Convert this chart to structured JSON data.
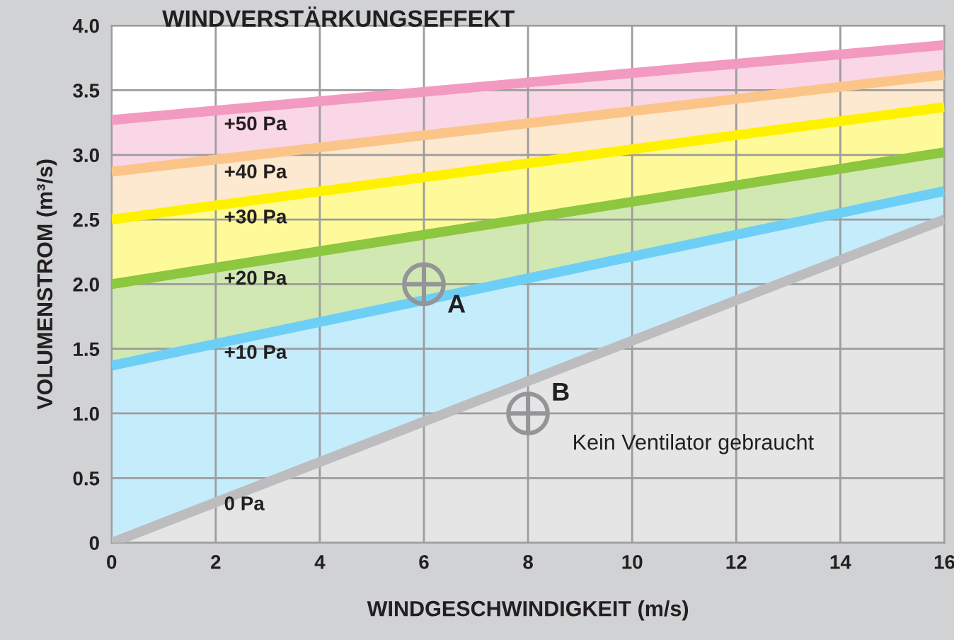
{
  "chart_data": {
    "type": "area",
    "title": "WINDVERSTÄRKUNGSEFFEKT",
    "xlabel": "WINDGESCHWINDIGKEIT (m/s)",
    "ylabel": "VOLUMENSTROM (m³/s)",
    "x": [
      0,
      16
    ],
    "series": [
      {
        "name": "0 Pa",
        "color": "#bdbdbf",
        "values": [
          0,
          2.5
        ]
      },
      {
        "name": "+10 Pa",
        "color": "#6dcff6",
        "values": [
          1.37,
          2.72
        ]
      },
      {
        "name": "+20 Pa",
        "color": "#8dc63f",
        "values": [
          2.0,
          3.02
        ]
      },
      {
        "name": "+30 Pa",
        "color": "#fff200",
        "values": [
          2.5,
          3.37
        ]
      },
      {
        "name": "+40 Pa",
        "color": "#fbc58a",
        "values": [
          2.87,
          3.62
        ]
      },
      {
        "name": "+50 Pa",
        "color": "#f39ac1",
        "values": [
          3.27,
          3.85
        ]
      }
    ],
    "xlim": [
      0,
      16
    ],
    "xticks": [
      0,
      2,
      4,
      6,
      8,
      10,
      12,
      14,
      16
    ],
    "ylim": [
      0,
      4
    ],
    "yticks": [
      {
        "value": 0,
        "label": "0"
      },
      {
        "value": 0.5,
        "label": "0.5"
      },
      {
        "value": 1,
        "label": "1.0"
      },
      {
        "value": 1.5,
        "label": "1.5"
      },
      {
        "value": 2,
        "label": "2.0"
      },
      {
        "value": 2.5,
        "label": "2.5"
      },
      {
        "value": 3,
        "label": "3.0"
      },
      {
        "value": 3.5,
        "label": "3.5"
      },
      {
        "value": 4,
        "label": "4.0"
      }
    ],
    "grid": true,
    "legend": false,
    "annotations": [
      {
        "text": "A",
        "x": 6,
        "y": 2.0
      },
      {
        "text": "B",
        "x": 8,
        "y": 1.0
      },
      "Kein Ventilator gebraucht"
    ]
  }
}
